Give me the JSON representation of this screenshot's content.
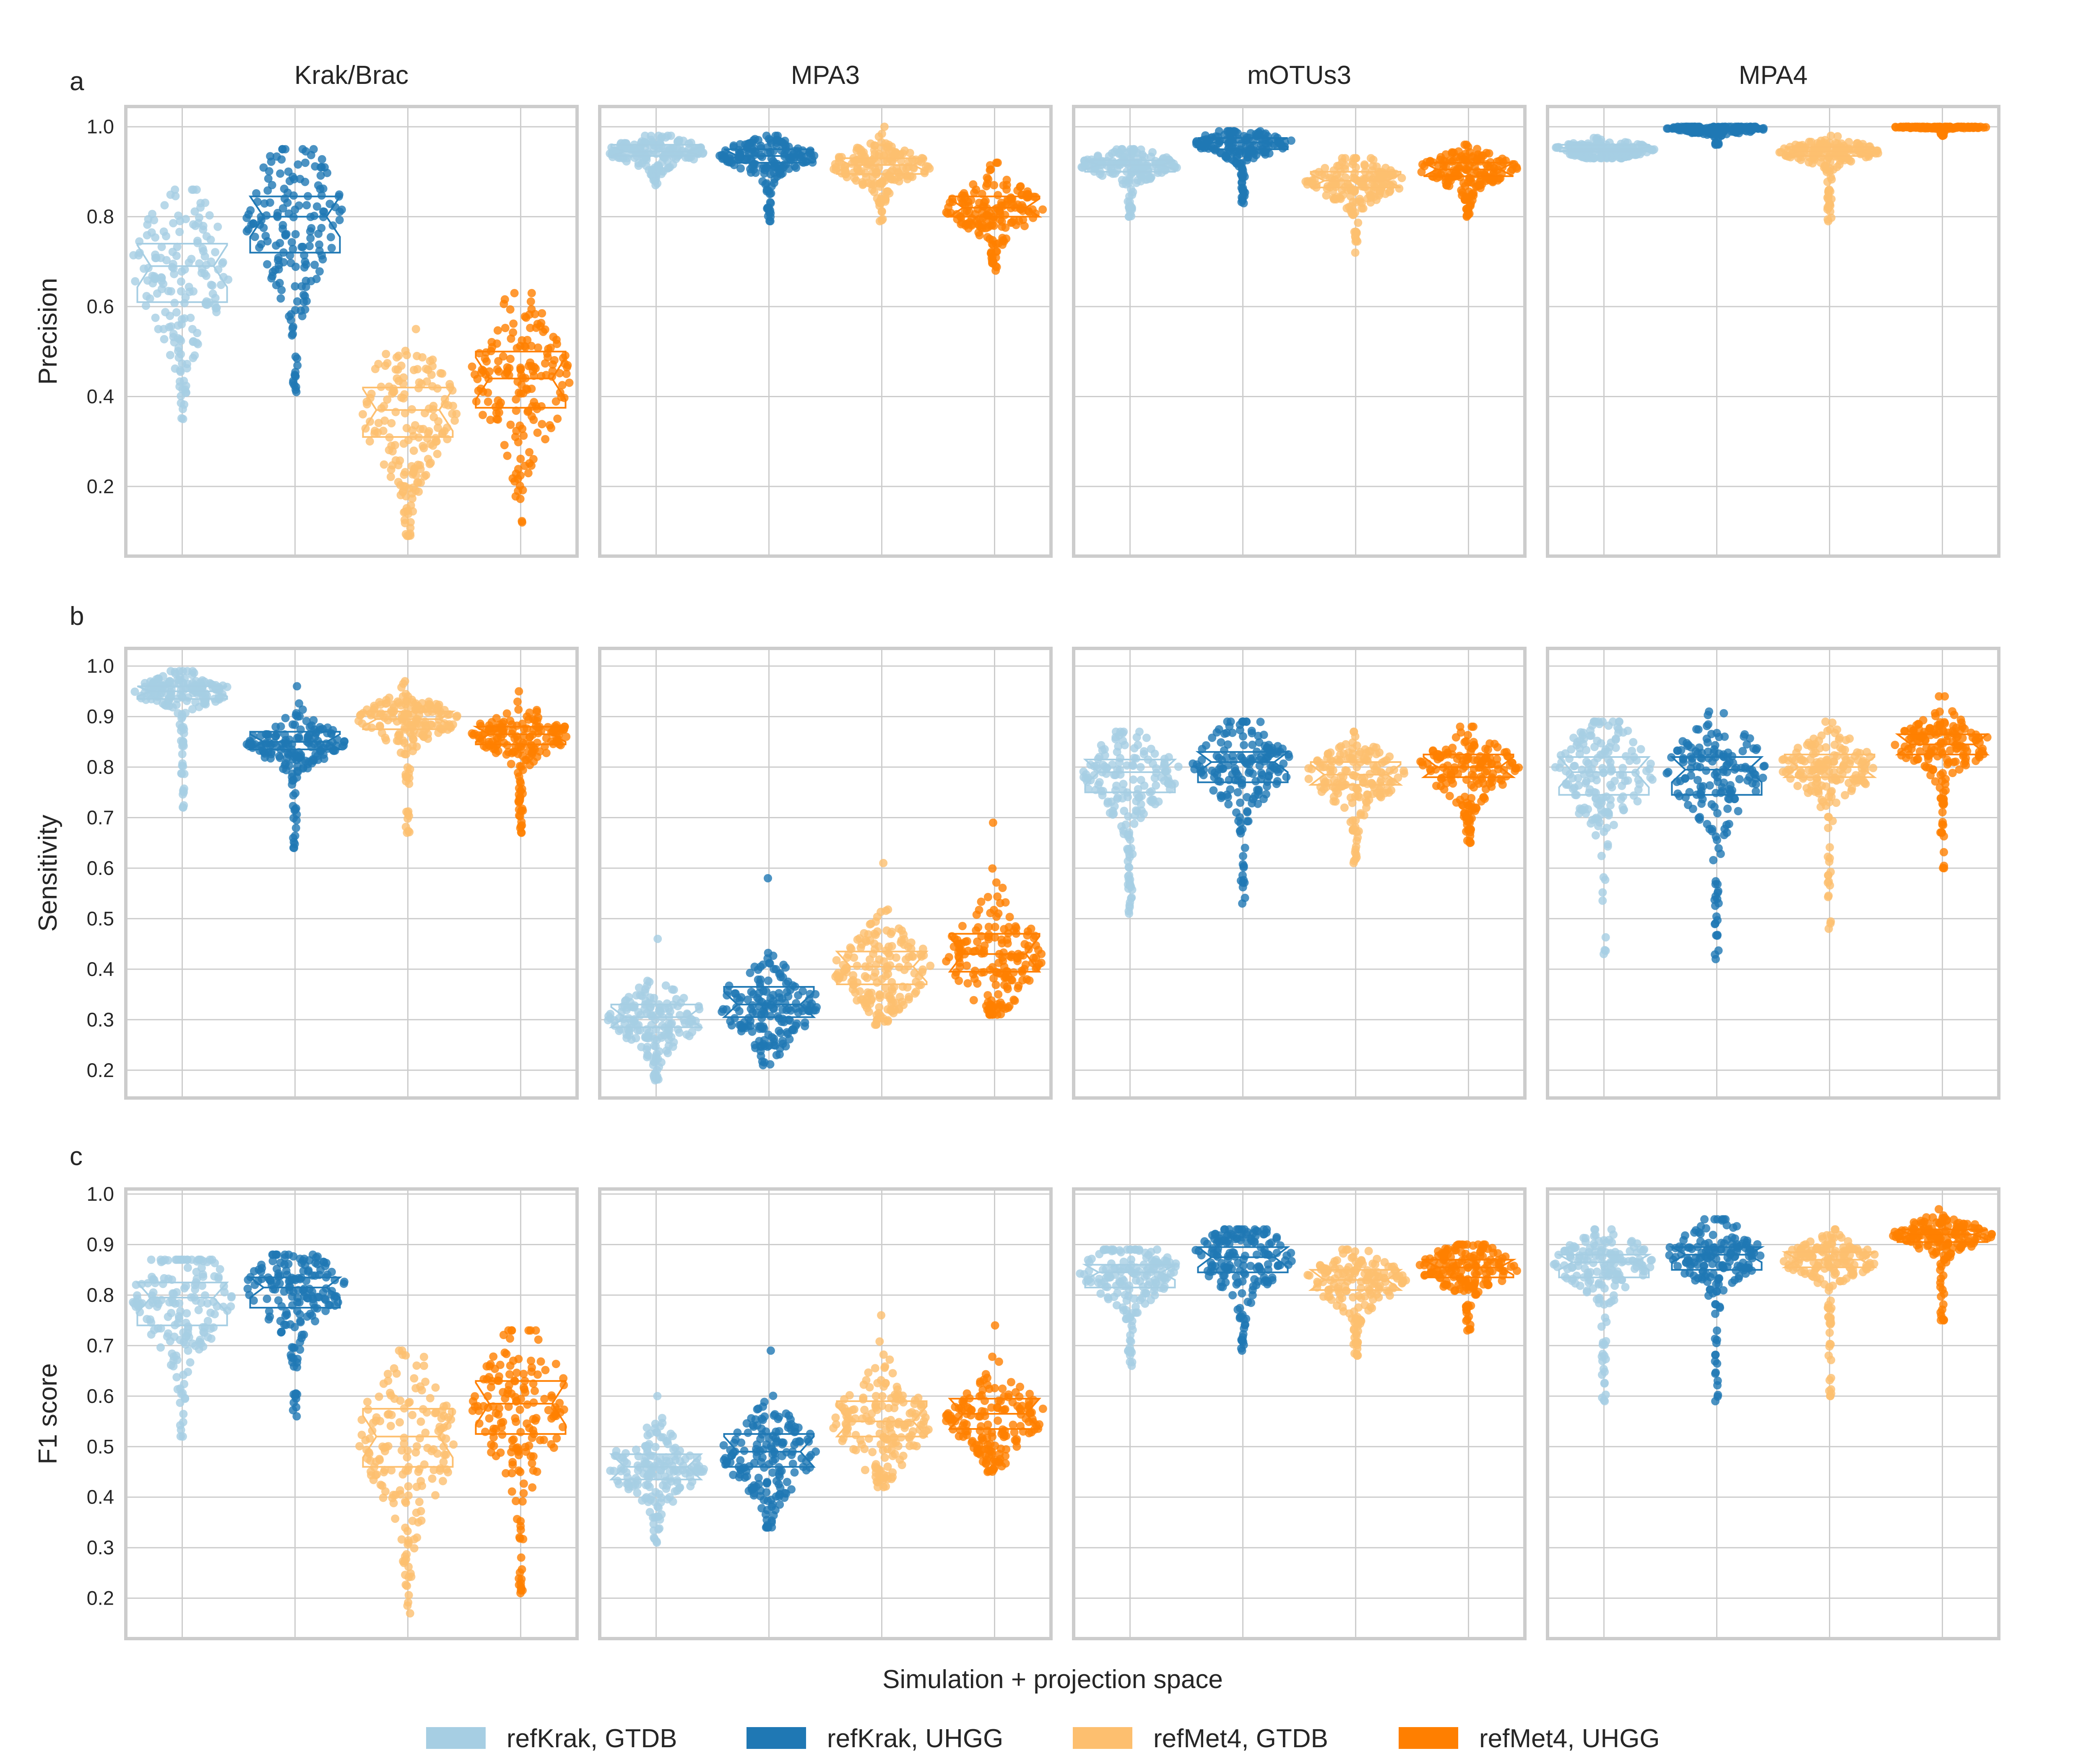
{
  "chart_data": {
    "type": "box",
    "title": "",
    "xlabel": "Simulation + projection space",
    "columns": [
      "Krak/Brac",
      "MPA3",
      "mOTUs3",
      "MPA4"
    ],
    "series": [
      {
        "name": "refKrak, GTDB",
        "color": "#a6cee3"
      },
      {
        "name": "refKrak, UHGG",
        "color": "#1f78b4"
      },
      {
        "name": "refMet4, GTDB",
        "color": "#fdbf6f"
      },
      {
        "name": "refMet4, UHGG",
        "color": "#ff7f00"
      }
    ],
    "rows": [
      {
        "letter": "a",
        "ylabel": "Precision",
        "ylim": [
          0.045,
          1.045
        ],
        "yticks": [
          "0.2",
          "0.4",
          "0.6",
          "0.8",
          "1.0"
        ],
        "panels": [
          {
            "column": "Krak/Brac",
            "boxes": [
              {
                "q1": 0.61,
                "median": 0.69,
                "q3": 0.74,
                "min": 0.35,
                "max": 0.86
              },
              {
                "q1": 0.72,
                "median": 0.8,
                "q3": 0.845,
                "min": 0.41,
                "max": 0.95
              },
              {
                "q1": 0.31,
                "median": 0.37,
                "q3": 0.42,
                "min": 0.09,
                "max": 0.55
              },
              {
                "q1": 0.375,
                "median": 0.44,
                "q3": 0.5,
                "min": 0.12,
                "max": 0.63
              }
            ]
          },
          {
            "column": "MPA3",
            "boxes": [
              {
                "q1": 0.935,
                "median": 0.945,
                "q3": 0.96,
                "min": 0.87,
                "max": 0.98
              },
              {
                "q1": 0.92,
                "median": 0.935,
                "q3": 0.95,
                "min": 0.79,
                "max": 0.98
              },
              {
                "q1": 0.895,
                "median": 0.915,
                "q3": 0.93,
                "min": 0.79,
                "max": 1.0
              },
              {
                "q1": 0.8,
                "median": 0.82,
                "q3": 0.845,
                "min": 0.68,
                "max": 0.92
              }
            ]
          },
          {
            "column": "mOTUs3",
            "boxes": [
              {
                "q1": 0.9,
                "median": 0.915,
                "q3": 0.925,
                "min": 0.8,
                "max": 0.95
              },
              {
                "q1": 0.95,
                "median": 0.965,
                "q3": 0.975,
                "min": 0.83,
                "max": 0.99
              },
              {
                "q1": 0.865,
                "median": 0.88,
                "q3": 0.9,
                "min": 0.72,
                "max": 0.93
              },
              {
                "q1": 0.89,
                "median": 0.905,
                "q3": 0.92,
                "min": 0.8,
                "max": 0.96
              }
            ]
          },
          {
            "column": "MPA4",
            "boxes": [
              {
                "q1": 0.945,
                "median": 0.95,
                "q3": 0.96,
                "min": 0.93,
                "max": 0.975
              },
              {
                "q1": 0.99,
                "median": 0.995,
                "q3": 0.998,
                "min": 0.96,
                "max": 1.0
              },
              {
                "q1": 0.935,
                "median": 0.945,
                "q3": 0.955,
                "min": 0.79,
                "max": 0.98
              },
              {
                "q1": 0.998,
                "median": 0.999,
                "q3": 1.0,
                "min": 0.98,
                "max": 1.0
              }
            ]
          }
        ]
      },
      {
        "letter": "b",
        "ylabel": "Sensitivity",
        "ylim": [
          0.145,
          1.035
        ],
        "yticks": [
          "0.2",
          "0.3",
          "0.4",
          "0.5",
          "0.6",
          "0.7",
          "0.8",
          "0.9",
          "1.0"
        ],
        "panels": [
          {
            "column": "Krak/Brac",
            "boxes": [
              {
                "q1": 0.935,
                "median": 0.95,
                "q3": 0.96,
                "min": 0.72,
                "max": 0.99
              },
              {
                "q1": 0.835,
                "median": 0.85,
                "q3": 0.87,
                "min": 0.64,
                "max": 0.96
              },
              {
                "q1": 0.875,
                "median": 0.895,
                "q3": 0.91,
                "min": 0.67,
                "max": 0.97
              },
              {
                "q1": 0.845,
                "median": 0.865,
                "q3": 0.88,
                "min": 0.67,
                "max": 0.95
              }
            ]
          },
          {
            "column": "MPA3",
            "boxes": [
              {
                "q1": 0.285,
                "median": 0.305,
                "q3": 0.33,
                "min": 0.18,
                "max": 0.46
              },
              {
                "q1": 0.305,
                "median": 0.33,
                "q3": 0.365,
                "min": 0.21,
                "max": 0.58
              },
              {
                "q1": 0.37,
                "median": 0.405,
                "q3": 0.435,
                "min": 0.29,
                "max": 0.61
              },
              {
                "q1": 0.395,
                "median": 0.43,
                "q3": 0.47,
                "min": 0.31,
                "max": 0.69
              }
            ]
          },
          {
            "column": "mOTUs3",
            "boxes": [
              {
                "q1": 0.75,
                "median": 0.79,
                "q3": 0.815,
                "min": 0.51,
                "max": 0.87
              },
              {
                "q1": 0.77,
                "median": 0.81,
                "q3": 0.83,
                "min": 0.53,
                "max": 0.89
              },
              {
                "q1": 0.765,
                "median": 0.785,
                "q3": 0.81,
                "min": 0.61,
                "max": 0.87
              },
              {
                "q1": 0.78,
                "median": 0.8,
                "q3": 0.825,
                "min": 0.65,
                "max": 0.88
              }
            ]
          },
          {
            "column": "MPA4",
            "boxes": [
              {
                "q1": 0.745,
                "median": 0.79,
                "q3": 0.82,
                "min": 0.43,
                "max": 0.89
              },
              {
                "q1": 0.745,
                "median": 0.795,
                "q3": 0.82,
                "min": 0.42,
                "max": 0.91
              },
              {
                "q1": 0.78,
                "median": 0.8,
                "q3": 0.825,
                "min": 0.48,
                "max": 0.89
              },
              {
                "q1": 0.825,
                "median": 0.845,
                "q3": 0.865,
                "min": 0.6,
                "max": 0.94
              }
            ]
          }
        ]
      },
      {
        "letter": "c",
        "ylabel": "F1 score",
        "ylim": [
          0.12,
          1.01
        ],
        "yticks": [
          "0.2",
          "0.3",
          "0.4",
          "0.5",
          "0.6",
          "0.7",
          "0.8",
          "0.9",
          "1.0"
        ],
        "panels": [
          {
            "column": "Krak/Brac",
            "boxes": [
              {
                "q1": 0.74,
                "median": 0.795,
                "q3": 0.825,
                "min": 0.52,
                "max": 0.87
              },
              {
                "q1": 0.775,
                "median": 0.815,
                "q3": 0.835,
                "min": 0.56,
                "max": 0.88
              },
              {
                "q1": 0.46,
                "median": 0.52,
                "q3": 0.575,
                "min": 0.17,
                "max": 0.69
              },
              {
                "q1": 0.525,
                "median": 0.585,
                "q3": 0.63,
                "min": 0.21,
                "max": 0.73
              }
            ]
          },
          {
            "column": "MPA3",
            "boxes": [
              {
                "q1": 0.435,
                "median": 0.46,
                "q3": 0.485,
                "min": 0.31,
                "max": 0.6
              },
              {
                "q1": 0.46,
                "median": 0.49,
                "q3": 0.525,
                "min": 0.34,
                "max": 0.69
              },
              {
                "q1": 0.52,
                "median": 0.55,
                "q3": 0.59,
                "min": 0.42,
                "max": 0.76
              },
              {
                "q1": 0.535,
                "median": 0.565,
                "q3": 0.595,
                "min": 0.45,
                "max": 0.74
              }
            ]
          },
          {
            "column": "mOTUs3",
            "boxes": [
              {
                "q1": 0.815,
                "median": 0.845,
                "q3": 0.86,
                "min": 0.66,
                "max": 0.89
              },
              {
                "q1": 0.845,
                "median": 0.875,
                "q3": 0.895,
                "min": 0.69,
                "max": 0.93
              },
              {
                "q1": 0.81,
                "median": 0.83,
                "q3": 0.85,
                "min": 0.68,
                "max": 0.89
              },
              {
                "q1": 0.835,
                "median": 0.855,
                "q3": 0.87,
                "min": 0.73,
                "max": 0.9
              }
            ]
          },
          {
            "column": "MPA4",
            "boxes": [
              {
                "q1": 0.835,
                "median": 0.865,
                "q3": 0.88,
                "min": 0.59,
                "max": 0.93
              },
              {
                "q1": 0.85,
                "median": 0.88,
                "q3": 0.895,
                "min": 0.59,
                "max": 0.95
              },
              {
                "q1": 0.855,
                "median": 0.87,
                "q3": 0.885,
                "min": 0.6,
                "max": 0.93
              },
              {
                "q1": 0.905,
                "median": 0.92,
                "q3": 0.93,
                "min": 0.75,
                "max": 0.97
              }
            ]
          }
        ]
      }
    ]
  }
}
